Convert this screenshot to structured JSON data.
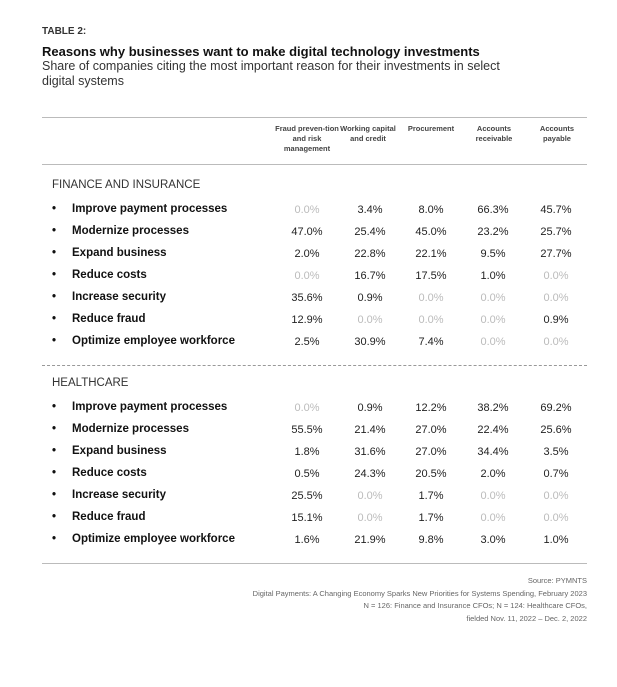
{
  "table_label": "TABLE 2:",
  "title": "Reasons why businesses want to make digital technology investments",
  "subtitle": "Share of companies citing the most important reason for their investments in select digital systems",
  "columns": [
    "Fraud preven-tion and risk management",
    "Working capital and credit",
    "Procurement",
    "Accounts receivable",
    "Accounts payable"
  ],
  "sections": [
    {
      "name": "FINANCE AND INSURANCE",
      "rows": [
        {
          "label": "Improve payment processes",
          "values": [
            "0.0%",
            "3.4%",
            "8.0%",
            "66.3%",
            "45.7%"
          ]
        },
        {
          "label": "Modernize processes",
          "values": [
            "47.0%",
            "25.4%",
            "45.0%",
            "23.2%",
            "25.7%"
          ]
        },
        {
          "label": "Expand business",
          "values": [
            "2.0%",
            "22.8%",
            "22.1%",
            "9.5%",
            "27.7%"
          ]
        },
        {
          "label": "Reduce costs",
          "values": [
            "0.0%",
            "16.7%",
            "17.5%",
            "1.0%",
            "0.0%"
          ]
        },
        {
          "label": "Increase security",
          "values": [
            "35.6%",
            "0.9%",
            "0.0%",
            "0.0%",
            "0.0%"
          ]
        },
        {
          "label": "Reduce fraud",
          "values": [
            "12.9%",
            "0.0%",
            "0.0%",
            "0.0%",
            "0.9%"
          ]
        },
        {
          "label": "Optimize employee workforce",
          "values": [
            "2.5%",
            "30.9%",
            "7.4%",
            "0.0%",
            "0.0%"
          ]
        }
      ]
    },
    {
      "name": "HEALTHCARE",
      "rows": [
        {
          "label": "Improve payment processes",
          "values": [
            "0.0%",
            "0.9%",
            "12.2%",
            "38.2%",
            "69.2%"
          ]
        },
        {
          "label": "Modernize processes",
          "values": [
            "55.5%",
            "21.4%",
            "27.0%",
            "22.4%",
            "25.6%"
          ]
        },
        {
          "label": "Expand business",
          "values": [
            "1.8%",
            "31.6%",
            "27.0%",
            "34.4%",
            "3.5%"
          ]
        },
        {
          "label": "Reduce costs",
          "values": [
            "0.5%",
            "24.3%",
            "20.5%",
            "2.0%",
            "0.7%"
          ]
        },
        {
          "label": "Increase security",
          "values": [
            "25.5%",
            "0.0%",
            "1.7%",
            "0.0%",
            "0.0%"
          ]
        },
        {
          "label": "Reduce fraud",
          "values": [
            "15.1%",
            "0.0%",
            "1.7%",
            "0.0%",
            "0.0%"
          ]
        },
        {
          "label": "Optimize employee workforce",
          "values": [
            "1.6%",
            "21.9%",
            "9.8%",
            "3.0%",
            "1.0%"
          ]
        }
      ]
    }
  ],
  "source": [
    "Source: PYMNTS",
    "Digital Payments: A Changing Economy Sparks New Priorities for Systems Spending, February 2023",
    "N = 126: Finance and Insurance CFOs; N = 124: Healthcare CFOs,",
    "fielded Nov. 11, 2022 – Dec. 2, 2022"
  ]
}
